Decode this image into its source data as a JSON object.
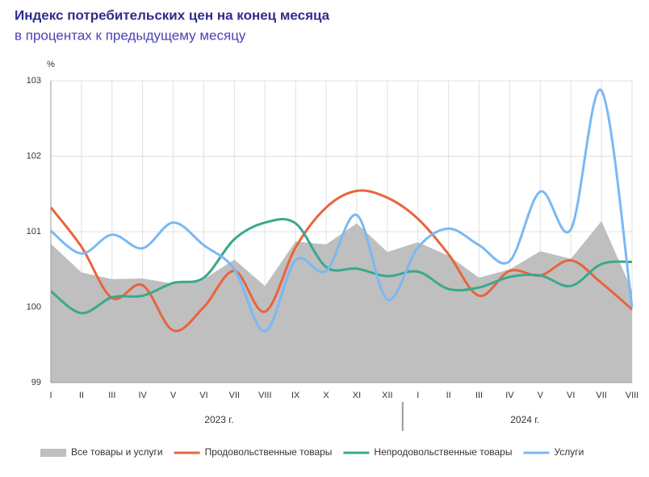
{
  "chart_data": {
    "type": "line",
    "title": "Индекс потребительских цен на конец месяца",
    "subtitle": "в процентах к предыдущему месяцу",
    "y_label": "%",
    "categories": [
      "I",
      "II",
      "III",
      "IV",
      "V",
      "VI",
      "VII",
      "VIII",
      "IX",
      "X",
      "XI",
      "XII",
      "I",
      "II",
      "III",
      "IV",
      "V",
      "VI",
      "VII",
      "VIII"
    ],
    "year_labels": [
      "2023 г.",
      "2024 г."
    ],
    "ylim": [
      99,
      103
    ],
    "yticks": [
      99,
      100,
      101,
      102,
      103
    ],
    "grid": true,
    "legend": "bottom",
    "series": [
      {
        "name": "Все товары и услуги",
        "type": "area",
        "color": "#bfbfbf",
        "values": [
          100.84,
          100.46,
          100.37,
          100.38,
          100.31,
          100.37,
          100.63,
          100.28,
          100.87,
          100.83,
          101.11,
          100.73,
          100.86,
          100.68,
          100.39,
          100.5,
          100.74,
          100.64,
          101.14,
          100.22
        ]
      },
      {
        "name": "Продовольственные товары",
        "type": "line",
        "color": "#e8643c",
        "values": [
          101.32,
          100.8,
          100.12,
          100.29,
          99.69,
          100.0,
          100.48,
          99.94,
          100.79,
          101.32,
          101.54,
          101.45,
          101.17,
          100.7,
          100.15,
          100.48,
          100.42,
          100.62,
          100.32,
          99.97
        ]
      },
      {
        "name": "Непродовольственные товары",
        "type": "line",
        "color": "#3aa88e",
        "values": [
          100.21,
          99.92,
          100.13,
          100.15,
          100.32,
          100.39,
          100.9,
          101.12,
          101.11,
          100.53,
          100.51,
          100.41,
          100.47,
          100.24,
          100.26,
          100.4,
          100.42,
          100.28,
          100.57,
          100.6
        ]
      },
      {
        "name": "Услуги",
        "type": "line",
        "color": "#7ab8f5",
        "values": [
          101.01,
          100.71,
          100.96,
          100.78,
          101.12,
          100.82,
          100.5,
          99.68,
          100.62,
          100.48,
          101.22,
          100.1,
          100.79,
          101.04,
          100.82,
          100.61,
          101.53,
          101.03,
          102.87,
          100.0
        ]
      }
    ]
  }
}
